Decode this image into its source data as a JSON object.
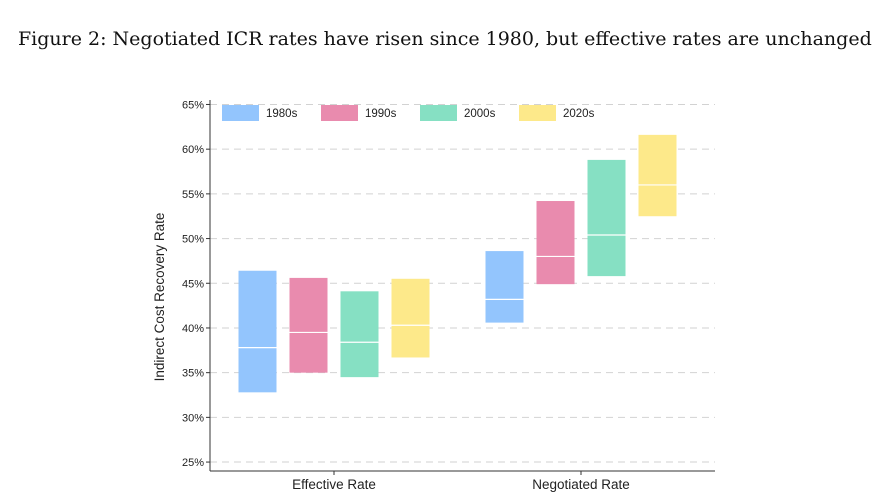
{
  "figure": {
    "caption": "Figure 2: Negotiated ICR rates have risen since 1980, but effective rates are unchanged"
  },
  "chart_data": {
    "type": "bar",
    "subtype": "floating-range",
    "ylabel": "Indirect Cost Recovery Rate",
    "xlabel": "",
    "ylim": [
      24,
      65.5
    ],
    "yticks": [
      25,
      30,
      35,
      40,
      45,
      50,
      55,
      60,
      65
    ],
    "ytick_labels": [
      "25%",
      "30%",
      "35%",
      "40%",
      "45%",
      "50%",
      "55%",
      "60%",
      "65%"
    ],
    "grid": "horizontal-dashed",
    "legend_position": "top-left",
    "categories": [
      "Effective Rate",
      "Negotiated Rate"
    ],
    "series": [
      {
        "name": "1980s",
        "color": "#93C5FD",
        "low": [
          32.8,
          40.6
        ],
        "mid": [
          37.8,
          43.2
        ],
        "high": [
          46.4,
          48.6
        ]
      },
      {
        "name": "1990s",
        "color": "#E98BAE",
        "low": [
          35.0,
          44.9
        ],
        "mid": [
          39.5,
          48.0
        ],
        "high": [
          45.6,
          54.2
        ]
      },
      {
        "name": "2000s",
        "color": "#86E0C3",
        "low": [
          34.5,
          45.8
        ],
        "mid": [
          38.4,
          50.4
        ],
        "high": [
          44.1,
          58.8
        ]
      },
      {
        "name": "2020s",
        "color": "#FDE98A",
        "low": [
          36.7,
          52.5
        ],
        "mid": [
          40.3,
          56.0
        ],
        "high": [
          45.5,
          61.6
        ]
      }
    ]
  }
}
